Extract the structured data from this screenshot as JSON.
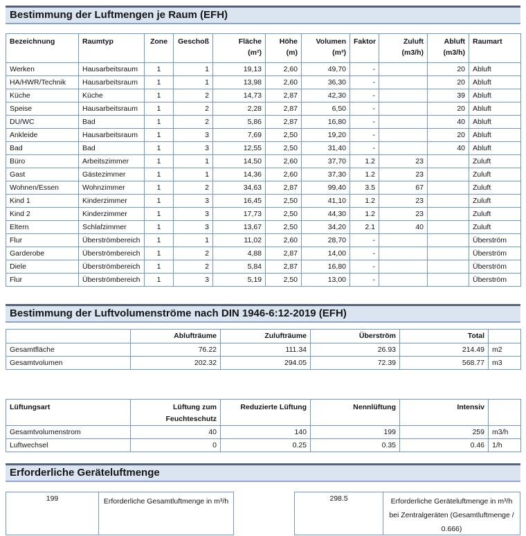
{
  "theme": {
    "table_border": "#6f97c9",
    "bar_background": "#dbe5f2",
    "bar_top_border": "#55627a",
    "bar_bottom_border": "#8aa4cf"
  },
  "section1": {
    "title": "Bestimmung der Luftmengen je Raum (EFH)",
    "table": {
      "columns": [
        {
          "label": "Bezeichnung",
          "unit": ""
        },
        {
          "label": "Raumtyp",
          "unit": ""
        },
        {
          "label": "Zone",
          "unit": ""
        },
        {
          "label": "Geschoß",
          "unit": ""
        },
        {
          "label": "Fläche",
          "unit": "(m²)"
        },
        {
          "label": "Höhe",
          "unit": "(m)"
        },
        {
          "label": "Volumen",
          "unit": "(m³)"
        },
        {
          "label": "Faktor",
          "unit": ""
        },
        {
          "label": "Zuluft",
          "unit": "(m3/h)"
        },
        {
          "label": "Abluft",
          "unit": "(m3/h)"
        },
        {
          "label": "Raumart",
          "unit": ""
        }
      ],
      "rows": [
        [
          "Werken",
          "Hausarbeitsraum",
          "1",
          "1",
          "19,13",
          "2,60",
          "49,70",
          "-",
          "",
          "20",
          "Abluft"
        ],
        [
          "HA/HWR/Technik",
          "Hausarbeitsraum",
          "1",
          "1",
          "13,98",
          "2,60",
          "36,30",
          "-",
          "",
          "20",
          "Abluft"
        ],
        [
          "Küche",
          "Küche",
          "1",
          "2",
          "14,73",
          "2,87",
          "42,30",
          "-",
          "",
          "39",
          "Abluft"
        ],
        [
          "Speise",
          "Hausarbeitsraum",
          "1",
          "2",
          "2,28",
          "2,87",
          "6,50",
          "-",
          "",
          "20",
          "Abluft"
        ],
        [
          "DU/WC",
          "Bad",
          "1",
          "2",
          "5,86",
          "2,87",
          "16,80",
          "-",
          "",
          "40",
          "Abluft"
        ],
        [
          "Ankleide",
          "Hausarbeitsraum",
          "1",
          "3",
          "7,69",
          "2,50",
          "19,20",
          "-",
          "",
          "20",
          "Abluft"
        ],
        [
          "Bad",
          "Bad",
          "1",
          "3",
          "12,55",
          "2,50",
          "31,40",
          "-",
          "",
          "40",
          "Abluft"
        ],
        [
          "Büro",
          "Arbeitszimmer",
          "1",
          "1",
          "14,50",
          "2,60",
          "37,70",
          "1.2",
          "23",
          "",
          "Zuluft"
        ],
        [
          "Gast",
          "Gästezimmer",
          "1",
          "1",
          "14,36",
          "2,60",
          "37,30",
          "1.2",
          "23",
          "",
          "Zuluft"
        ],
        [
          "Wohnen/Essen",
          "Wohnzimmer",
          "1",
          "2",
          "34,63",
          "2,87",
          "99,40",
          "3.5",
          "67",
          "",
          "Zuluft"
        ],
        [
          "Kind 1",
          "Kinderzimmer",
          "1",
          "3",
          "16,45",
          "2,50",
          "41,10",
          "1.2",
          "23",
          "",
          "Zuluft"
        ],
        [
          "Kind 2",
          "Kinderzimmer",
          "1",
          "3",
          "17,73",
          "2,50",
          "44,30",
          "1.2",
          "23",
          "",
          "Zuluft"
        ],
        [
          "Eltern",
          "Schlafzimmer",
          "1",
          "3",
          "13,67",
          "2,50",
          "34,20",
          "2.1",
          "40",
          "",
          "Zuluft"
        ],
        [
          "Flur",
          "Überströmbereich",
          "1",
          "1",
          "11,02",
          "2,60",
          "28,70",
          "-",
          "",
          "",
          "Überström"
        ],
        [
          "Garderobe",
          "Überströmbereich",
          "1",
          "2",
          "4,88",
          "2,87",
          "14,00",
          "-",
          "",
          "",
          "Überström"
        ],
        [
          "Diele",
          "Überströmbereich",
          "1",
          "2",
          "5,84",
          "2,87",
          "16,80",
          "-",
          "",
          "",
          "Überström"
        ],
        [
          "Flur",
          "Überströmbereich",
          "1",
          "3",
          "5,19",
          "2,50",
          "13,00",
          "-",
          "",
          "",
          "Überström"
        ]
      ]
    }
  },
  "section2": {
    "title": "Bestimmung der Luftvolumenströme nach DIN 1946-6:12-2019 (EFH)",
    "table": {
      "columns": [
        "",
        "Ablufträume",
        "Zulufträume",
        "Überström",
        "Total",
        ""
      ],
      "rows": [
        [
          "Gesamtfläche",
          "76.22",
          "111.34",
          "26.93",
          "214.49",
          "m2"
        ],
        [
          "Gesamtvolumen",
          "202.32",
          "294.05",
          "72.39",
          "568.77",
          "m3"
        ]
      ]
    }
  },
  "section3": {
    "table": {
      "columns": [
        "Lüftungsart",
        "Lüftung zum Feuchteschutz",
        "Reduzierte Lüftung",
        "Nennlüftung",
        "Intensiv",
        ""
      ],
      "rows": [
        [
          "Gesamtvolumenstrom",
          "40",
          "140",
          "199",
          "259",
          "m3/h"
        ],
        [
          "Luftwechsel",
          "0",
          "0.25",
          "0.35",
          "0.46",
          "1/h"
        ]
      ]
    }
  },
  "section4": {
    "title": "Erforderliche Geräteluftmenge",
    "boxes": [
      {
        "value": "199",
        "label": "Erforderliche Gesamtluftmenge in m³/h"
      },
      {
        "value": "298.5",
        "label": "Erforderliche Geräteluftmenge in m³/h bei Zentralgeräten (Gesamtluftmenge / 0.666)"
      }
    ]
  }
}
